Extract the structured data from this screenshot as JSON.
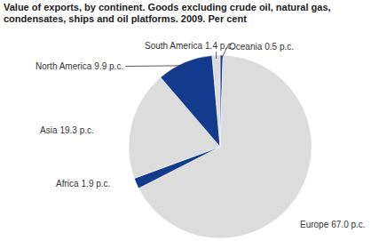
{
  "chart_data": {
    "type": "pie",
    "title": "Value of exports, by continent. Goods excluding crude oil, natural gas, condensates, ships and oil platforms. 2009. Per cent",
    "categories": [
      "Oceania",
      "Europe",
      "Africa",
      "Asia",
      "North America",
      "South America"
    ],
    "values": [
      0.5,
      67.0,
      1.9,
      19.3,
      9.9,
      1.4
    ],
    "value_labels": [
      "0.5 p.c.",
      "67.0 p.c.",
      "1.9 p.c.",
      "19.3 p.c.",
      "9.9 p.c.",
      "1.4 p.c."
    ],
    "colors": [
      "#123b8e",
      "#dcdcdc",
      "#123b8e",
      "#dcdcdc",
      "#123b8e",
      "#dcdcdc"
    ],
    "data_labels": true
  }
}
